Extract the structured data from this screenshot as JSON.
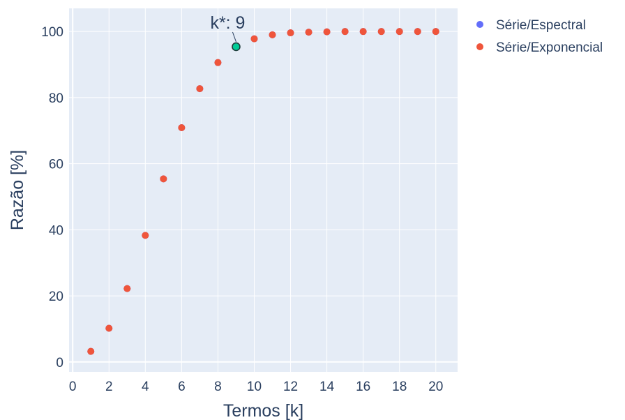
{
  "chart_data": {
    "type": "scatter",
    "xlabel": "Termos [k]",
    "ylabel": "Razão [%]",
    "xlim": [
      -0.2,
      21.2
    ],
    "ylim": [
      -3,
      107
    ],
    "x_ticks": [
      0,
      2,
      4,
      6,
      8,
      10,
      12,
      14,
      16,
      18,
      20
    ],
    "y_ticks": [
      0,
      20,
      40,
      60,
      80,
      100
    ],
    "grid": true,
    "background": "#e5ecf6",
    "legend_position": "top-right outside",
    "series": [
      {
        "name": "Série/Espectral",
        "color": "#636efa",
        "x": [
          1,
          2,
          3,
          4,
          5,
          6,
          7,
          8,
          9,
          10,
          11,
          12,
          13,
          14,
          15,
          16,
          17,
          18,
          19,
          20
        ],
        "y": [
          3.2,
          10.2,
          22.2,
          38.3,
          55.4,
          70.9,
          82.7,
          90.6,
          95.4,
          97.8,
          99.0,
          99.6,
          99.8,
          99.9,
          100,
          100,
          100,
          100,
          100,
          100
        ]
      },
      {
        "name": "Série/Exponencial",
        "color": "#ef553b",
        "x": [
          1,
          2,
          3,
          4,
          5,
          6,
          7,
          8,
          9,
          10,
          11,
          12,
          13,
          14,
          15,
          16,
          17,
          18,
          19,
          20
        ],
        "y": [
          3.2,
          10.2,
          22.2,
          38.3,
          55.4,
          70.9,
          82.7,
          90.6,
          95.4,
          97.8,
          99.0,
          99.6,
          99.8,
          99.9,
          100,
          100,
          100,
          100,
          100,
          100
        ]
      }
    ],
    "highlight": {
      "x": 9,
      "y": 95.4,
      "color": "#00cc96",
      "label": "k*: 9"
    }
  }
}
